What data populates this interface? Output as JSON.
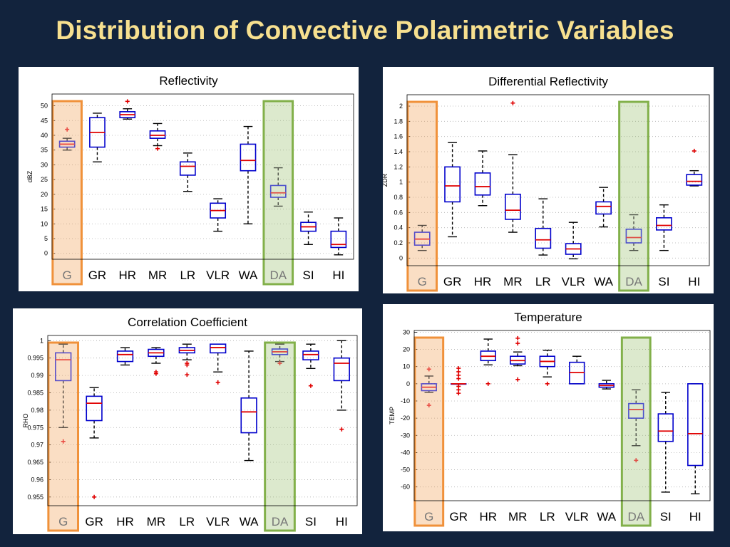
{
  "slide": {
    "title": "Distribution of Convective Polarimetric Variables"
  },
  "colors": {
    "background": "#12233d",
    "title": "#f7e08f",
    "box": "#0000cc",
    "median": "#e00000",
    "outlier": "#e00000",
    "highlight_g": "#f0913a",
    "highlight_da": "#82b04a"
  },
  "chart_data": [
    {
      "type": "box",
      "title": "Reflectivity",
      "ylabel": "dBZ",
      "ylim": [
        -2,
        54
      ],
      "yticks": [
        0,
        5,
        10,
        15,
        20,
        25,
        30,
        35,
        40,
        45,
        50
      ],
      "categories": [
        "G",
        "GR",
        "HR",
        "MR",
        "LR",
        "VLR",
        "WA",
        "DA",
        "SI",
        "HI"
      ],
      "highlighted": [
        "G",
        "DA"
      ],
      "boxes": [
        {
          "min": 35,
          "q1": 36,
          "median": 37,
          "q3": 38,
          "max": 39,
          "outliers": [
            42
          ]
        },
        {
          "min": 31,
          "q1": 36,
          "median": 41,
          "q3": 46,
          "max": 47.5,
          "outliers": []
        },
        {
          "min": 45.5,
          "q1": 46,
          "median": 47,
          "q3": 48,
          "max": 49,
          "outliers": [
            51.5
          ]
        },
        {
          "min": 36.5,
          "q1": 39,
          "median": 40,
          "q3": 41.5,
          "max": 44,
          "outliers": [
            35.5
          ]
        },
        {
          "min": 21,
          "q1": 26.5,
          "median": 29.5,
          "q3": 31,
          "max": 34,
          "outliers": []
        },
        {
          "min": 7.5,
          "q1": 12,
          "median": 14.5,
          "q3": 17,
          "max": 18.5,
          "outliers": []
        },
        {
          "min": 10,
          "q1": 28,
          "median": 31.5,
          "q3": 37,
          "max": 43,
          "outliers": []
        },
        {
          "min": 16,
          "q1": 19,
          "median": 20.5,
          "q3": 23,
          "max": 29,
          "outliers": []
        },
        {
          "min": 3,
          "q1": 7.5,
          "median": 9,
          "q3": 10.5,
          "max": 14,
          "outliers": []
        },
        {
          "min": -0.5,
          "q1": 2,
          "median": 3,
          "q3": 7.5,
          "max": 12,
          "outliers": []
        }
      ]
    },
    {
      "type": "box",
      "title": "Differential Reflectivity",
      "ylabel": "ZDR",
      "ylim": [
        -0.1,
        2.15
      ],
      "yticks": [
        0,
        0.2,
        0.4,
        0.6,
        0.8,
        1,
        1.2,
        1.4,
        1.6,
        1.8,
        2
      ],
      "categories": [
        "G",
        "GR",
        "HR",
        "MR",
        "LR",
        "VLR",
        "WA",
        "DA",
        "SI",
        "HI"
      ],
      "highlighted": [
        "G",
        "DA"
      ],
      "boxes": [
        {
          "min": 0.1,
          "q1": 0.17,
          "median": 0.25,
          "q3": 0.34,
          "max": 0.43,
          "outliers": []
        },
        {
          "min": 0.28,
          "q1": 0.74,
          "median": 0.95,
          "q3": 1.2,
          "max": 1.52,
          "outliers": []
        },
        {
          "min": 0.69,
          "q1": 0.83,
          "median": 0.94,
          "q3": 1.12,
          "max": 1.41,
          "outliers": []
        },
        {
          "min": 0.34,
          "q1": 0.51,
          "median": 0.63,
          "q3": 0.84,
          "max": 1.36,
          "outliers": [
            2.04
          ]
        },
        {
          "min": 0.04,
          "q1": 0.13,
          "median": 0.24,
          "q3": 0.39,
          "max": 0.78,
          "outliers": []
        },
        {
          "min": -0.01,
          "q1": 0.05,
          "median": 0.12,
          "q3": 0.19,
          "max": 0.47,
          "outliers": []
        },
        {
          "min": 0.41,
          "q1": 0.58,
          "median": 0.68,
          "q3": 0.74,
          "max": 0.93,
          "outliers": []
        },
        {
          "min": 0.1,
          "q1": 0.2,
          "median": 0.27,
          "q3": 0.38,
          "max": 0.57,
          "outliers": []
        },
        {
          "min": 0.1,
          "q1": 0.37,
          "median": 0.43,
          "q3": 0.53,
          "max": 0.7,
          "outliers": []
        },
        {
          "min": 0.95,
          "q1": 0.96,
          "median": 1.01,
          "q3": 1.1,
          "max": 1.15,
          "outliers": [
            1.41
          ]
        }
      ]
    },
    {
      "type": "box",
      "title": "Correlation Coefficient",
      "ylabel": "RHO",
      "ylim": [
        0.9525,
        1.0015
      ],
      "yticks": [
        0.955,
        0.96,
        0.965,
        0.97,
        0.975,
        0.98,
        0.985,
        0.99,
        0.995,
        1
      ],
      "categories": [
        "G",
        "GR",
        "HR",
        "MR",
        "LR",
        "VLR",
        "WA",
        "DA",
        "SI",
        "HI"
      ],
      "highlighted": [
        "G",
        "DA"
      ],
      "boxes": [
        {
          "min": 0.975,
          "q1": 0.9885,
          "median": 0.9945,
          "q3": 0.9965,
          "max": 0.999,
          "outliers": [
            0.971
          ]
        },
        {
          "min": 0.972,
          "q1": 0.977,
          "median": 0.982,
          "q3": 0.984,
          "max": 0.9865,
          "outliers": [
            0.955
          ]
        },
        {
          "min": 0.993,
          "q1": 0.994,
          "median": 0.996,
          "q3": 0.997,
          "max": 0.998,
          "outliers": []
        },
        {
          "min": 0.9935,
          "q1": 0.9955,
          "median": 0.9965,
          "q3": 0.9975,
          "max": 0.998,
          "outliers": [
            0.991,
            0.9905
          ]
        },
        {
          "min": 0.9945,
          "q1": 0.9965,
          "median": 0.9972,
          "q3": 0.998,
          "max": 0.999,
          "outliers": [
            0.9935,
            0.993,
            0.9902
          ]
        },
        {
          "min": 0.991,
          "q1": 0.9965,
          "median": 0.998,
          "q3": 0.999,
          "max": 0.999,
          "outliers": [
            0.988
          ]
        },
        {
          "min": 0.9655,
          "q1": 0.9735,
          "median": 0.9795,
          "q3": 0.9835,
          "max": 0.997,
          "outliers": []
        },
        {
          "min": 0.994,
          "q1": 0.996,
          "median": 0.9968,
          "q3": 0.9976,
          "max": 0.999,
          "outliers": [
            0.9935
          ]
        },
        {
          "min": 0.992,
          "q1": 0.9945,
          "median": 0.996,
          "q3": 0.997,
          "max": 0.999,
          "outliers": [
            0.987
          ]
        },
        {
          "min": 0.98,
          "q1": 0.9885,
          "median": 0.9935,
          "q3": 0.995,
          "max": 1.0,
          "outliers": [
            0.9745
          ]
        }
      ]
    },
    {
      "type": "box",
      "title": "Temperature",
      "ylabel": "TEMP",
      "ylim": [
        -68,
        31
      ],
      "yticks": [
        -60,
        -50,
        -40,
        -30,
        -20,
        -10,
        0,
        10,
        20,
        30
      ],
      "categories": [
        "G",
        "GR",
        "HR",
        "MR",
        "LR",
        "VLR",
        "WA",
        "DA",
        "SI",
        "HI"
      ],
      "highlighted": [
        "G",
        "DA"
      ],
      "boxes": [
        {
          "min": -5,
          "q1": -4,
          "median": -2,
          "q3": 0,
          "max": 4.5,
          "outliers": [
            8.5,
            -12.5
          ]
        },
        {
          "min": 0,
          "q1": 0,
          "median": 0,
          "q3": 0,
          "max": 0,
          "outliers": [
            9,
            7,
            5,
            3,
            -1.5,
            -3.5,
            -5.5
          ]
        },
        {
          "min": 11,
          "q1": 13.5,
          "median": 16,
          "q3": 19,
          "max": 26,
          "outliers": [
            0
          ]
        },
        {
          "min": 10.5,
          "q1": 11.5,
          "median": 13.5,
          "q3": 16,
          "max": 18.5,
          "outliers": [
            26.5,
            23.5,
            2.5
          ]
        },
        {
          "min": 4,
          "q1": 10,
          "median": 13,
          "q3": 16,
          "max": 19.5,
          "outliers": [
            0
          ]
        },
        {
          "min": 0,
          "q1": 0,
          "median": 6.5,
          "q3": 12.5,
          "max": 16,
          "outliers": []
        },
        {
          "min": -3,
          "q1": -2,
          "median": -1,
          "q3": 0,
          "max": 2,
          "outliers": []
        },
        {
          "min": -36,
          "q1": -20,
          "median": -15,
          "q3": -11.5,
          "max": -3.5,
          "outliers": [
            -44.5
          ]
        },
        {
          "min": -63,
          "q1": -33.5,
          "median": -27.5,
          "q3": -17.5,
          "max": -5,
          "outliers": []
        },
        {
          "min": -64,
          "q1": -47.5,
          "median": -29,
          "q3": 0,
          "max": 0,
          "outliers": []
        }
      ]
    }
  ]
}
